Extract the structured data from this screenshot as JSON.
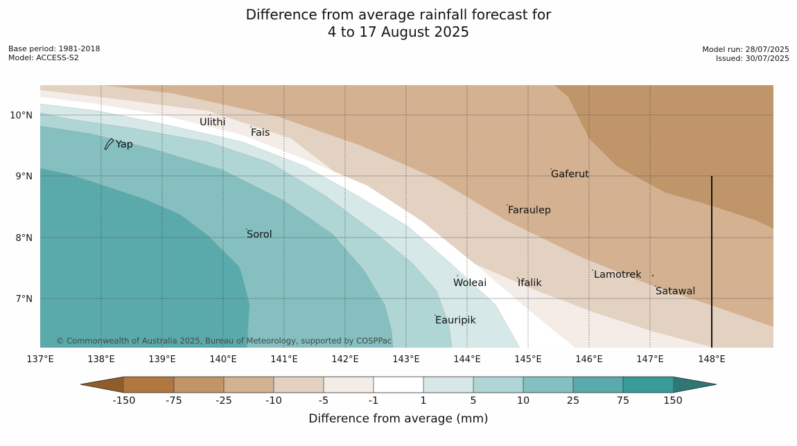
{
  "title": {
    "line1": "Difference from average rainfall forecast for",
    "line2": "4 to 17 August 2025"
  },
  "meta": {
    "base_period": "Base period: 1981-2018",
    "model": "Model: ACCESS-S2",
    "model_run": "Model run: 28/07/2025",
    "issued": "Issued: 30/07/2025"
  },
  "map": {
    "lon_labels": [
      "137°E",
      "138°E",
      "139°E",
      "140°E",
      "141°E",
      "142°E",
      "143°E",
      "144°E",
      "145°E",
      "146°E",
      "147°E",
      "148°E"
    ],
    "lat_labels": [
      "10°N",
      "9°N",
      "8°N",
      "7°N"
    ],
    "places": [
      {
        "name": "Ulithi",
        "lon": 139.61,
        "lat": 9.88
      },
      {
        "name": "Fais",
        "lon": 140.45,
        "lat": 9.72
      },
      {
        "name": "Yap",
        "lon": 138.24,
        "lat": 9.52
      },
      {
        "name": "Gaferut",
        "lon": 145.37,
        "lat": 9.03
      },
      {
        "name": "Faraulep",
        "lon": 144.68,
        "lat": 8.44
      },
      {
        "name": "Sorol",
        "lon": 140.4,
        "lat": 8.05
      },
      {
        "name": "Lamotrek",
        "lon": 146.06,
        "lat": 7.38
      },
      {
        "name": "Woleai",
        "lon": 143.79,
        "lat": 7.25
      },
      {
        "name": "Ifalik",
        "lon": 144.83,
        "lat": 7.25
      },
      {
        "name": "Satawal",
        "lon": 147.1,
        "lat": 7.11
      },
      {
        "name": "Eauripik",
        "lon": 143.48,
        "lat": 6.62
      }
    ],
    "copyright": "© Commonwealth of Australia 2025, Bureau of Meteorology, supported by COSPPac"
  },
  "colorbar": {
    "title": "Difference from average (mm)",
    "ticks": [
      "-150",
      "-75",
      "-25",
      "-10",
      "-5",
      "-1",
      "1",
      "5",
      "10",
      "25",
      "75",
      "150"
    ],
    "colors": [
      "#8f5c2a",
      "#b07840",
      "#c0956a",
      "#d3b191",
      "#e3d1c1",
      "#f3ece7",
      "#ffffff",
      "#d6e9e8",
      "#afd5d5",
      "#85bfbf",
      "#5baaab",
      "#3a9a97",
      "#2e7775"
    ]
  }
}
